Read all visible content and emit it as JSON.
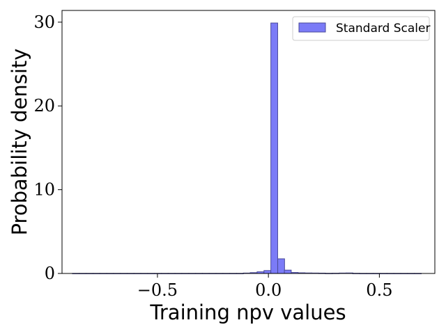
{
  "chart_data": {
    "type": "bar",
    "subtype": "histogram",
    "xlabel": "Training npv values",
    "ylabel": "Probability density",
    "xlim": [
      -0.93,
      0.75
    ],
    "ylim": [
      0,
      31.4
    ],
    "xticks": [
      -0.5,
      0.0,
      0.5
    ],
    "xtick_labels": [
      "−0.5",
      "0.0",
      "0.5"
    ],
    "yticks": [
      0,
      10,
      20,
      30
    ],
    "ytick_labels": [
      "0",
      "10",
      "20",
      "30"
    ],
    "grid": false,
    "legend_position": "top-right",
    "series": [
      {
        "name": "Standard Scaler",
        "color": "#7b7bf7",
        "edge_color": "#4a4a99",
        "bin_width": 0.0308,
        "bins": [
          {
            "x0": -0.883,
            "value": 0.01
          },
          {
            "x0": -0.852,
            "value": 0.01
          },
          {
            "x0": -0.821,
            "value": 0.01
          },
          {
            "x0": -0.79,
            "value": 0.01
          },
          {
            "x0": -0.76,
            "value": 0.01
          },
          {
            "x0": -0.729,
            "value": 0.01
          },
          {
            "x0": -0.698,
            "value": 0.01
          },
          {
            "x0": -0.667,
            "value": 0.01
          },
          {
            "x0": -0.636,
            "value": 0.01
          },
          {
            "x0": -0.606,
            "value": 0.01
          },
          {
            "x0": -0.575,
            "value": 0.01
          },
          {
            "x0": -0.544,
            "value": 0.01
          },
          {
            "x0": -0.513,
            "value": 0.01
          },
          {
            "x0": -0.482,
            "value": 0.01
          },
          {
            "x0": -0.452,
            "value": 0.01
          },
          {
            "x0": -0.421,
            "value": 0.01
          },
          {
            "x0": -0.39,
            "value": 0.01
          },
          {
            "x0": -0.359,
            "value": 0.01
          },
          {
            "x0": -0.328,
            "value": 0.01
          },
          {
            "x0": -0.298,
            "value": 0.01
          },
          {
            "x0": -0.267,
            "value": 0.01
          },
          {
            "x0": -0.236,
            "value": 0.01
          },
          {
            "x0": -0.205,
            "value": 0.01
          },
          {
            "x0": -0.174,
            "value": 0.01
          },
          {
            "x0": -0.144,
            "value": 0.01
          },
          {
            "x0": -0.113,
            "value": 0.05
          },
          {
            "x0": -0.082,
            "value": 0.1
          },
          {
            "x0": -0.051,
            "value": 0.2
          },
          {
            "x0": -0.02,
            "value": 0.35
          },
          {
            "x0": 0.011,
            "value": 29.9
          },
          {
            "x0": 0.042,
            "value": 1.75
          },
          {
            "x0": 0.072,
            "value": 0.4
          },
          {
            "x0": 0.103,
            "value": 0.12
          },
          {
            "x0": 0.134,
            "value": 0.08
          },
          {
            "x0": 0.165,
            "value": 0.06
          },
          {
            "x0": 0.196,
            "value": 0.05
          },
          {
            "x0": 0.226,
            "value": 0.04
          },
          {
            "x0": 0.257,
            "value": 0.02
          },
          {
            "x0": 0.288,
            "value": 0.03
          },
          {
            "x0": 0.319,
            "value": 0.05
          },
          {
            "x0": 0.35,
            "value": 0.06
          },
          {
            "x0": 0.38,
            "value": 0.02
          },
          {
            "x0": 0.411,
            "value": 0.01
          },
          {
            "x0": 0.442,
            "value": 0.01
          },
          {
            "x0": 0.473,
            "value": 0.01
          },
          {
            "x0": 0.504,
            "value": 0.01
          },
          {
            "x0": 0.534,
            "value": 0.01
          },
          {
            "x0": 0.565,
            "value": 0.01
          },
          {
            "x0": 0.596,
            "value": 0.01
          },
          {
            "x0": 0.627,
            "value": 0.01
          },
          {
            "x0": 0.658,
            "value": 0.01
          }
        ]
      }
    ]
  }
}
